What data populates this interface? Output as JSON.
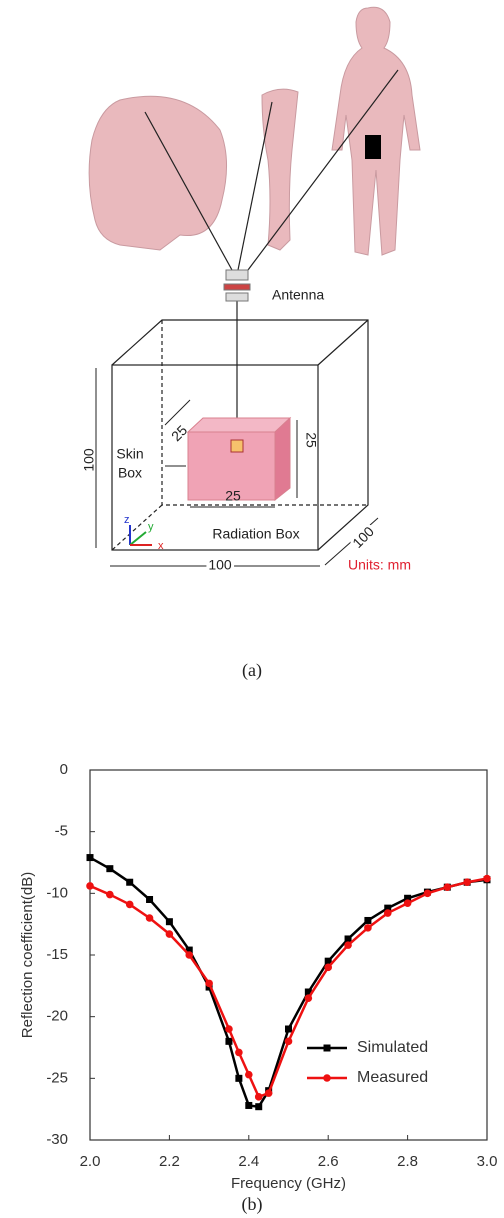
{
  "diagram": {
    "antenna": "Antenna",
    "skin_box": [
      "Skin",
      "Box"
    ],
    "skin_dims": [
      "25",
      "25",
      "25"
    ],
    "box_dims": [
      "100",
      "100",
      "100"
    ],
    "radiation_box": "Radiation Box",
    "units": "Units: mm",
    "axes": [
      "z",
      "y",
      "x"
    ],
    "caption": "(a)"
  },
  "chart_data": {
    "type": "line",
    "xlabel": "Frequency (GHz)",
    "ylabel": "Reflection coefficient(dB)",
    "x": [
      2.0,
      2.05,
      2.1,
      2.15,
      2.2,
      2.25,
      2.3,
      2.35,
      2.375,
      2.4,
      2.425,
      2.45,
      2.5,
      2.55,
      2.6,
      2.65,
      2.7,
      2.75,
      2.8,
      2.85,
      2.9,
      2.95,
      3.0
    ],
    "series": [
      {
        "name": "Simulated",
        "color": "#000000",
        "marker": "square",
        "values": [
          -7.1,
          -8.0,
          -9.1,
          -10.5,
          -12.3,
          -14.6,
          -17.6,
          -22.0,
          -25.0,
          -27.2,
          -27.3,
          -26.0,
          -21.0,
          -18.0,
          -15.5,
          -13.7,
          -12.2,
          -11.2,
          -10.4,
          -9.9,
          -9.5,
          -9.1,
          -8.9
        ]
      },
      {
        "name": "Measured",
        "color": "#ee1111",
        "marker": "circle",
        "values": [
          -9.4,
          -10.1,
          -10.9,
          -12.0,
          -13.3,
          -15.0,
          -17.3,
          -21.0,
          -22.9,
          -24.7,
          -26.5,
          -26.2,
          -22.0,
          -18.5,
          -16.0,
          -14.2,
          -12.8,
          -11.6,
          -10.8,
          -10.0,
          -9.5,
          -9.1,
          -8.8
        ]
      }
    ],
    "xlim": [
      2.0,
      3.0
    ],
    "ylim": [
      -30,
      0
    ],
    "xticks": [
      {
        "value": 2.0,
        "label": "2.0"
      },
      2.2,
      2.4,
      2.6,
      2.8,
      {
        "value": 3.0,
        "label": "3.0"
      }
    ],
    "yticks": [
      0,
      -5,
      -10,
      -15,
      -20,
      -25,
      -30
    ],
    "legend": "lower right",
    "caption": "(b)"
  }
}
